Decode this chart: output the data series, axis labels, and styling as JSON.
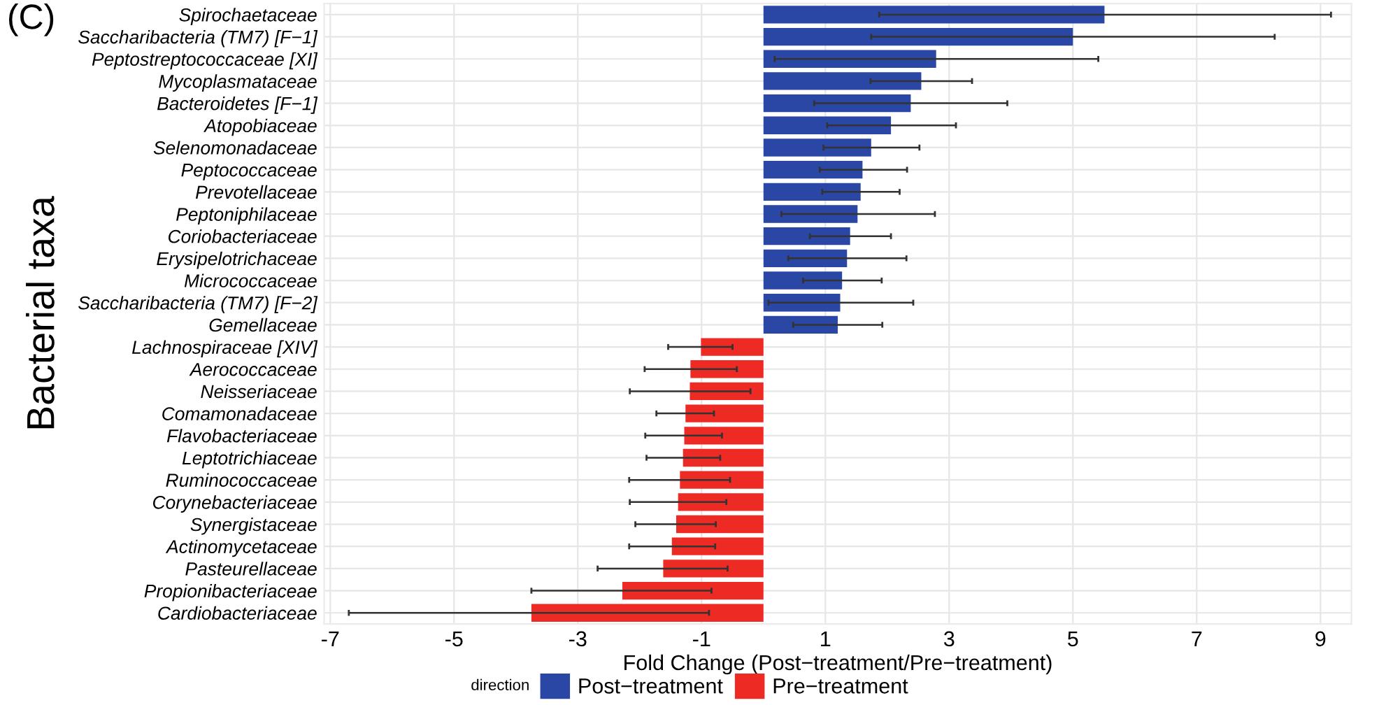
{
  "chart_data": {
    "type": "bar",
    "orientation": "horizontal",
    "categories": [
      "Spirochaetaceae",
      "Saccharibacteria (TM7) [F−1]",
      "Peptostreptococcaceae [XI]",
      "Mycoplasmataceae",
      "Bacteroidetes [F−1]",
      "Atopobiaceae",
      "Selenomonadaceae",
      "Peptococcaceae",
      "Prevotellaceae",
      "Peptoniphilaceae",
      "Coriobacteriaceae",
      "Erysipelotrichaceae",
      "Micrococcaceae",
      "Saccharibacteria (TM7) [F−2]",
      "Gemellaceae",
      "Lachnospiraceae [XIV]",
      "Aerococcaceae",
      "Neisseriaceae",
      "Comamonadaceae",
      "Flavobacteriaceae",
      "Leptotrichiaceae",
      "Ruminococcaceae",
      "Corynebacteriaceae",
      "Synergistaceae",
      "Actinomycetaceae",
      "Pasteurellaceae",
      "Propionibacteriaceae",
      "Cardiobacteriaceae"
    ],
    "series": [
      {
        "name": "Post−treatment",
        "color": "#2b47a6",
        "values": [
          5.51,
          5.0,
          2.79,
          2.55,
          2.38,
          2.06,
          1.74,
          1.6,
          1.57,
          1.52,
          1.4,
          1.35,
          1.27,
          1.24,
          1.2,
          null,
          null,
          null,
          null,
          null,
          null,
          null,
          null,
          null,
          null,
          null,
          null,
          null
        ],
        "errors": [
          [
            1.87,
            9.17
          ],
          [
            1.74,
            8.26
          ],
          [
            0.18,
            5.41
          ],
          [
            1.73,
            3.37
          ],
          [
            0.82,
            3.94
          ],
          [
            1.03,
            3.11
          ],
          [
            0.97,
            2.52
          ],
          [
            0.91,
            2.32
          ],
          [
            0.95,
            2.2
          ],
          [
            0.29,
            2.77
          ],
          [
            0.75,
            2.06
          ],
          [
            0.4,
            2.31
          ],
          [
            0.64,
            1.91
          ],
          [
            0.08,
            2.42
          ],
          [
            0.48,
            1.92
          ],
          null,
          null,
          null,
          null,
          null,
          null,
          null,
          null,
          null,
          null,
          null,
          null,
          null
        ]
      },
      {
        "name": "Pre−treatment",
        "color": "#ee2a24",
        "values": [
          null,
          null,
          null,
          null,
          null,
          null,
          null,
          null,
          null,
          null,
          null,
          null,
          null,
          null,
          null,
          -1.01,
          -1.18,
          -1.19,
          -1.26,
          -1.28,
          -1.3,
          -1.35,
          -1.38,
          -1.41,
          -1.48,
          -1.62,
          -2.28,
          -3.75
        ],
        "errors": [
          null,
          null,
          null,
          null,
          null,
          null,
          null,
          null,
          null,
          null,
          null,
          null,
          null,
          null,
          null,
          [
            -1.54,
            -0.5
          ],
          [
            -1.92,
            -0.43
          ],
          [
            -2.16,
            -0.21
          ],
          [
            -1.73,
            -0.8
          ],
          [
            -1.91,
            -0.67
          ],
          [
            -1.89,
            -0.7
          ],
          [
            -2.17,
            -0.54
          ],
          [
            -2.16,
            -0.6
          ],
          [
            -2.07,
            -0.77
          ],
          [
            -2.17,
            -0.78
          ],
          [
            -2.68,
            -0.58
          ],
          [
            -3.75,
            -0.84
          ],
          [
            -6.7,
            -0.88
          ]
        ]
      }
    ],
    "xlim": [
      -7.1,
      9.5
    ],
    "xticks": [
      -7,
      -5,
      -3,
      -1,
      1,
      3,
      5,
      7,
      9
    ],
    "xlabel": "Fold Change (Post−treatment/Pre−treatment)",
    "ylabel": "Bacterial taxa",
    "legend_title": "direction",
    "legend": "bottom",
    "grid": true,
    "annotations": [
      "(C)"
    ]
  }
}
